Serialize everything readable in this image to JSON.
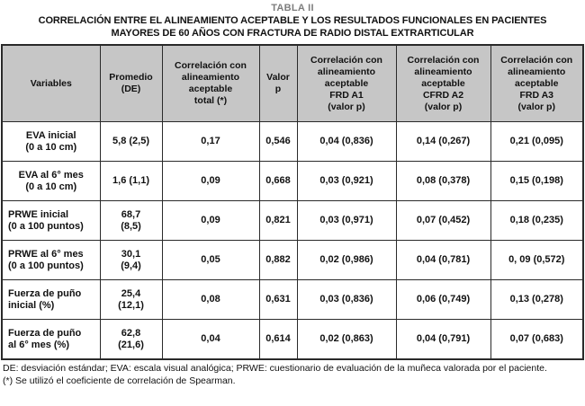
{
  "title": {
    "table_label": "TABLA II",
    "line1": "CORRELACIÓN ENTRE EL ALINEAMIENTO ACEPTABLE Y LOS RESULTADOS FUNCIONALES EN PACIENTES",
    "line2": "MAYORES DE 60 AÑOS CON FRACTURA DE RADIO DISTAL EXTRARTICULAR"
  },
  "table": {
    "headers": [
      "Variables",
      "Promedio\n(DE)",
      "Correlación con\nalineamiento\naceptable\ntotal (*)",
      "Valor\np",
      "Correlación con\nalineamiento\naceptable\nFRD A1\n(valor p)",
      "Correlación con\nalineamiento\naceptable\nCFRD A2\n(valor p)",
      "Correlación con\nalineamiento\naceptable\nFRD A3\n(valor p)"
    ],
    "rows": [
      [
        "EVA inicial\n(0 a 10 cm)",
        "5,8 (2,5)",
        "0,17",
        "0,546",
        "0,04 (0,836)",
        "0,14 (0,267)",
        "0,21 (0,095)"
      ],
      [
        "EVA al 6° mes\n(0 a 10 cm)",
        "1,6 (1,1)",
        "0,09",
        "0,668",
        "0,03 (0,921)",
        "0,08 (0,378)",
        "0,15 (0,198)"
      ],
      [
        "PRWE inicial\n(0 a 100 puntos)",
        "68,7\n(8,5)",
        "0,09",
        "0,821",
        "0,03 (0,971)",
        "0,07 (0,452)",
        "0,18 (0,235)"
      ],
      [
        "PRWE al 6° mes\n(0 a 100 puntos)",
        "30,1\n(9,4)",
        "0,05",
        "0,882",
        "0,02 (0,986)",
        "0,04 (0,781)",
        "0, 09 (0,572)"
      ],
      [
        "Fuerza de puño\ninicial (%)",
        "25,4\n(12,1)",
        "0,08",
        "0,631",
        "0,03 (0,836)",
        "0,06 (0,749)",
        "0,13 (0,278)"
      ],
      [
        "Fuerza de puño\nal 6° mes (%)",
        "62,8\n(21,6)",
        "0,04",
        "0,614",
        "0,02 (0,863)",
        "0,04 (0,791)",
        "0,07 (0,683)"
      ]
    ]
  },
  "footnotes": [
    "DE: desviación estándar; EVA: escala visual analógica; PRWE: cuestionario de evaluación de la muñeca valorada por el paciente.",
    "(*) Se utilizó el coeficiente de correlación de Spearman."
  ],
  "colors": {
    "header_bg": "#c6c6c6",
    "border": "#2a2a2a",
    "title_gray": "#7d7d7d",
    "text": "#111111",
    "page_bg": "#ffffff"
  }
}
